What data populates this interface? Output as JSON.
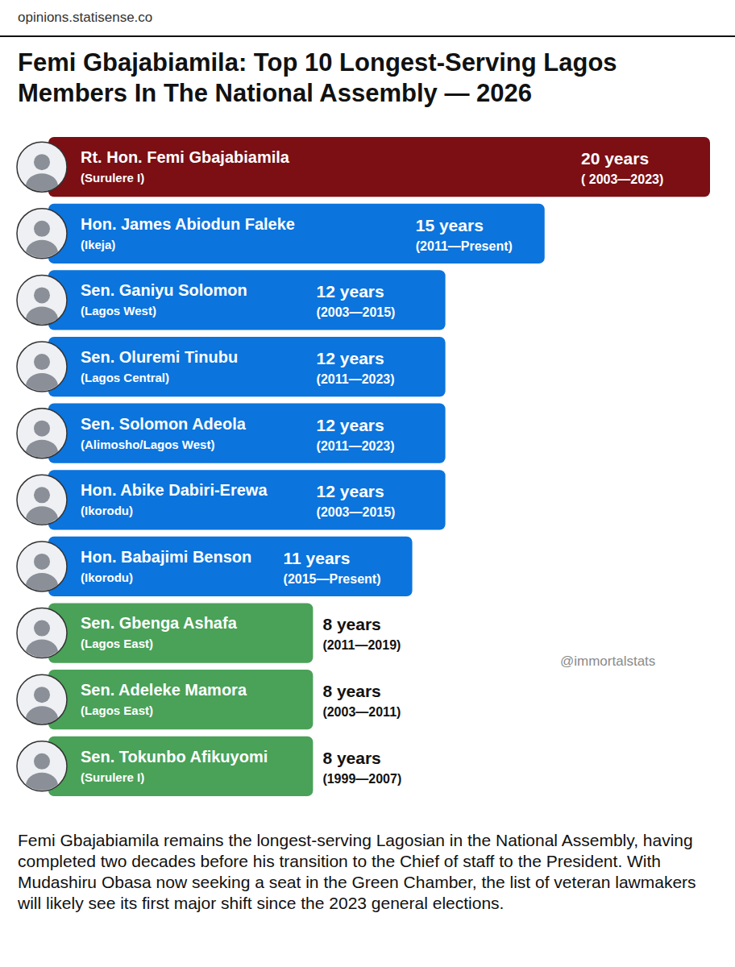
{
  "chart_data": {
    "type": "bar",
    "orientation": "horizontal",
    "source": "opinions.statisense.co",
    "title": "Femi Gbajabiamila: Top 10 Longest-Serving Lagos Members In The National Assembly — 2026",
    "credit": "@immortalstats",
    "caption": "Femi Gbajabiamila remains the longest-serving Lagosian in the National Assembly, having completed two decades before his transition to the Chief of staff to the President. With Mudashiru Obasa now seeking a seat in the Green Chamber, the list of veteran lawmakers will likely see its first major shift since the 2023 general elections.",
    "categories": [
      "Rt. Hon. Femi Gbajabiamila",
      "Hon. James Abiodun Faleke",
      "Sen. Ganiyu Solomon",
      "Sen. Oluremi Tinubu",
      "Sen. Solomon Adeola",
      "Hon. Abike Dabiri-Erewa",
      "Hon. Babajimi Benson",
      "Sen. Gbenga Ashafa",
      "Sen. Adeleke Mamora",
      "Sen. Tokunbo Afikuyomi"
    ],
    "constituencies": [
      "(Surulere I)",
      "(Ikeja)",
      "(Lagos West)",
      "(Lagos Central)",
      "(Alimosho/Lagos West)",
      "(Ikorodu)",
      "(Ikorodu)",
      "(Lagos East)",
      "(Lagos East)",
      "(Surulere I)"
    ],
    "values": [
      20,
      15,
      12,
      12,
      12,
      12,
      11,
      8,
      8,
      8
    ],
    "value_labels": [
      "20 years",
      "15 years",
      "12 years",
      "12 years",
      "12 years",
      "12 years",
      "11 years",
      "8 years",
      "8 years",
      "8 years"
    ],
    "periods": [
      "( 2003—2023)",
      "(2011—Present)",
      "(2003—2015)",
      "(2011—2023)",
      "(2011—2023)",
      "(2003—2015)",
      "(2015—Present)",
      "(2011—2019)",
      "(2003—2011)",
      "(1999—2007)"
    ],
    "colors": [
      "#7b0f14",
      "#0b74dd",
      "#0b74dd",
      "#0b74dd",
      "#0b74dd",
      "#0b74dd",
      "#0b74dd",
      "#4aa158",
      "#4aa158",
      "#4aa158"
    ],
    "xlim": [
      0,
      20
    ],
    "data_labels": true,
    "tick_labels": false,
    "grid": false
  }
}
